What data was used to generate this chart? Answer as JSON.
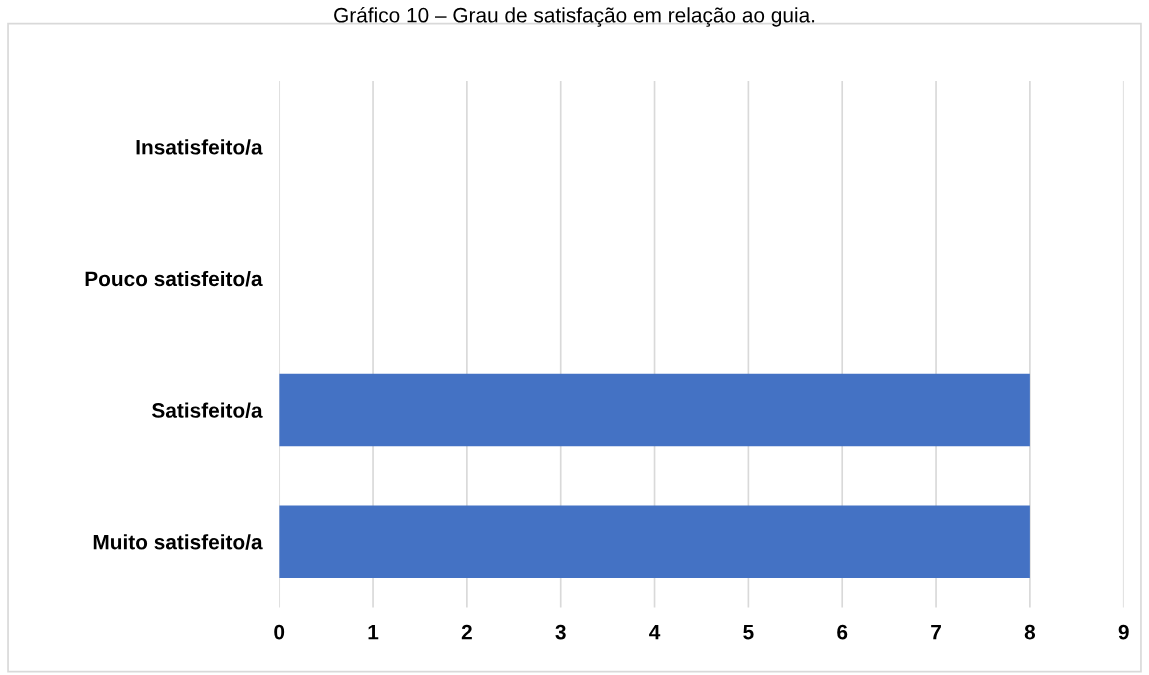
{
  "chart_data": {
    "type": "bar",
    "orientation": "horizontal",
    "title": "Gráfico 10 – Grau de satisfação em relação ao guia.",
    "categories": [
      "Insatisfeito/a",
      "Pouco satisfeito/a",
      "Satisfeito/a",
      "Muito satisfeito/a"
    ],
    "values": [
      0,
      0,
      8,
      8
    ],
    "color": "#4472c4",
    "xlim": [
      0,
      9
    ],
    "xticks": [
      0,
      1,
      2,
      3,
      4,
      5,
      6,
      7,
      8,
      9
    ],
    "grid": "x"
  }
}
